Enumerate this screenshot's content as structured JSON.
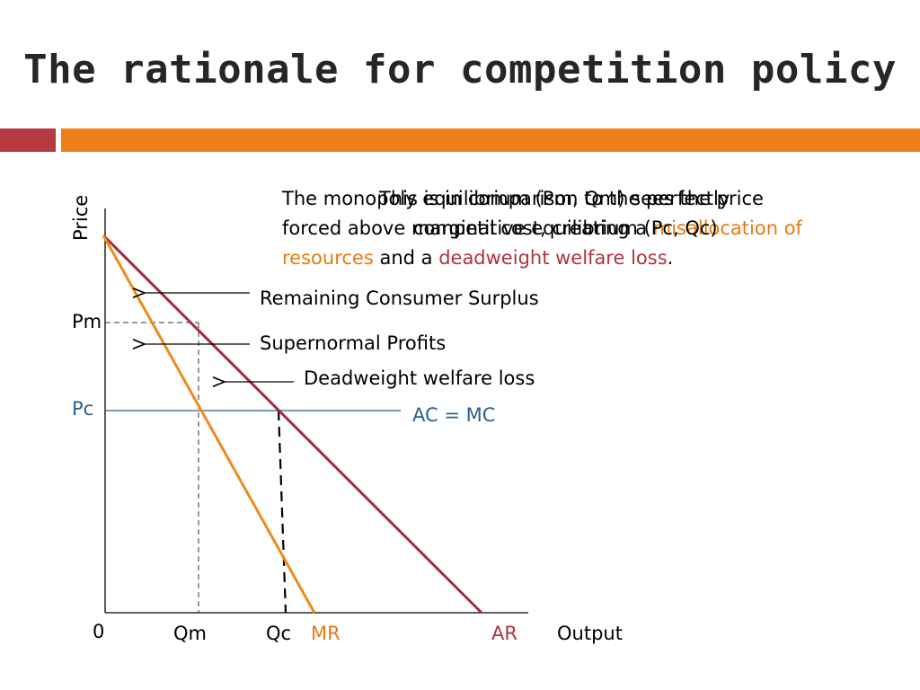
{
  "slide": {
    "title": "The rationale for competition policy"
  },
  "intro": {
    "overlay_text": "This is in comparison to the perfectly",
    "line1": "The monopoly equilibrium (Pm, Qm) sees the price",
    "line2_a": "forced above marginal cost, creating a ",
    "line2_b": "misallocation of",
    "line2_overlay": "competitive equilibrium (Pc, Qc)",
    "line3_a": "resources",
    "line3_b": " and  a ",
    "line3_c": "deadweight welfare loss",
    "line3_d": "."
  },
  "axes": {
    "y_label": "Price",
    "x_label": "Output",
    "origin": "0"
  },
  "ticks": {
    "pm": "Pm",
    "pc": "Pc",
    "qm": "Qm",
    "qc": "Qc"
  },
  "curves": {
    "mr": "MR",
    "ar": "AR",
    "ac_mc": "AC = MC"
  },
  "annotations": {
    "consumer_surplus": "Remaining Consumer Surplus",
    "supernormal_profits": "Supernormal Profits",
    "deadweight_loss": "Deadweight welfare loss"
  },
  "colors": {
    "title": "#262626",
    "accent_red": "#b53a3f",
    "accent_orange": "#ef7f1a",
    "ar_curve": "#a52a3c",
    "mr_curve": "#ef8a1a",
    "ac_line": "#2a5f8f"
  }
}
